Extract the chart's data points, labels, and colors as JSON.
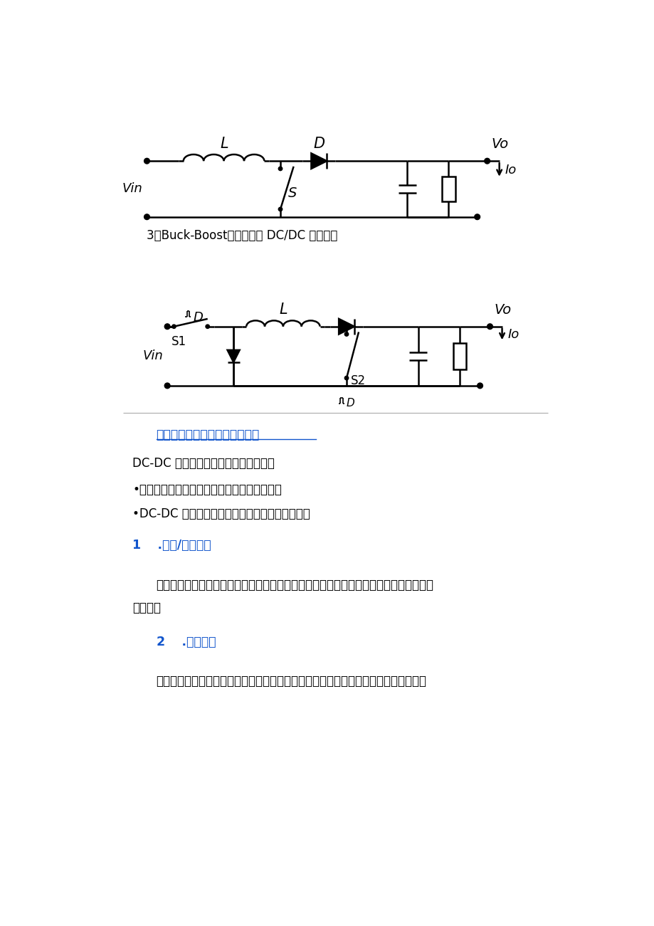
{
  "bg_color": "#ffffff",
  "title_section": "计技巧及主要技术参数选用赢Ｉ",
  "label3": "3、Buck-Boost（升降压型 DC/DC 转换器）",
  "para1": "DC-DC 电路设计至少要考虑以下条件：",
  "bullet1": "•外部输入电源电压的范围，输出电流的大小。",
  "bullet2": "•DC-DC 输出的电压，电流，系统的功率最大値。",
  "heading1": "1  .输入/输出电压",
  "para2": "要按照器件的推荐工作电压范围选用，并且要考虑实际电压的波动范围，确保不能超出器",
  "para2b": "件规格。",
  "heading2": "2  .输出电流",
  "para3": "器件持续的输出电流能力是一个重要的参数，选用时要参考此参数，并要保留一定的余"
}
